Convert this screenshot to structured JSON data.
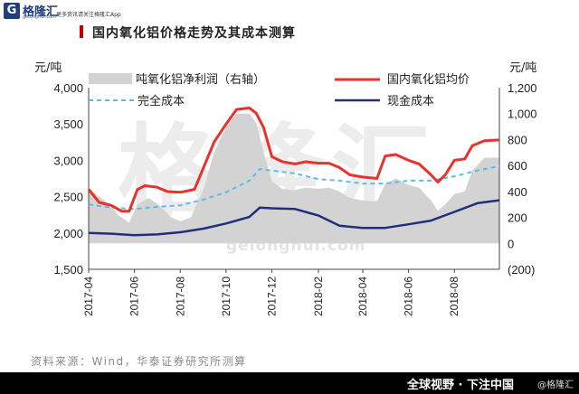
{
  "header": {
    "logo_mark": "G",
    "logo_text": "格隆汇",
    "logo_sub": "gelonghui.com",
    "tagline": "更多资讯请关注格隆汇App"
  },
  "page": {
    "title": "国内氧化铝价格走势及其成本测算",
    "source": "资料来源：Wind，华泰证券研究所测算",
    "footer_slogan": "全球视野 · 下注中国",
    "footer_logo": "@格隆汇",
    "watermark": "格隆汇",
    "watermark_url": "gelonghui.com"
  },
  "colors": {
    "price": "#e8322b",
    "full_cost": "#5bbbe8",
    "cash_cost": "#1f2f7a",
    "profit": "#d3d3d3"
  },
  "chart_data": {
    "type": "line",
    "title": "国内氧化铝价格走势及其成本测算",
    "y_left": {
      "label": "元/吨",
      "range": [
        1500,
        4000
      ],
      "ticks": [
        "1,500",
        "2,000",
        "2,500",
        "3,000",
        "3,500",
        "4,000"
      ]
    },
    "y_right": {
      "label": "元/吨",
      "range": [
        -200,
        1200
      ],
      "ticks": [
        "(200)",
        "0",
        "200",
        "400",
        "600",
        "800",
        "1,000",
        "1,200"
      ]
    },
    "x": {
      "start": "2017-04-01",
      "end": "2018-09-30",
      "ticks": [
        "2017-04",
        "2017-06",
        "2017-08",
        "2017-10",
        "2017-12",
        "2018-02",
        "2018-04",
        "2018-06",
        "2018-08"
      ]
    },
    "legend": {
      "placement": "top"
    },
    "series": [
      {
        "name": "吨氧化铝净利润（右轴）",
        "axis": "right",
        "style": "area",
        "points": [
          [
            "2017-04-01",
            420
          ],
          [
            "2017-04-15",
            360
          ],
          [
            "2017-05-01",
            290
          ],
          [
            "2017-05-10",
            220
          ],
          [
            "2017-05-25",
            160
          ],
          [
            "2017-06-05",
            300
          ],
          [
            "2017-06-20",
            350
          ],
          [
            "2017-07-05",
            290
          ],
          [
            "2017-07-20",
            200
          ],
          [
            "2017-08-01",
            170
          ],
          [
            "2017-08-15",
            200
          ],
          [
            "2017-09-01",
            420
          ],
          [
            "2017-09-15",
            700
          ],
          [
            "2017-10-01",
            900
          ],
          [
            "2017-10-15",
            1000
          ],
          [
            "2017-11-01",
            1000
          ],
          [
            "2017-11-10",
            930
          ],
          [
            "2017-11-20",
            700
          ],
          [
            "2017-12-01",
            480
          ],
          [
            "2017-12-15",
            420
          ],
          [
            "2017-12-31",
            410
          ],
          [
            "2018-01-15",
            430
          ],
          [
            "2018-02-01",
            420
          ],
          [
            "2018-02-15",
            430
          ],
          [
            "2018-03-01",
            400
          ],
          [
            "2018-03-15",
            350
          ],
          [
            "2018-04-01",
            330
          ],
          [
            "2018-04-20",
            320
          ],
          [
            "2018-05-01",
            460
          ],
          [
            "2018-05-15",
            500
          ],
          [
            "2018-06-01",
            450
          ],
          [
            "2018-06-15",
            430
          ],
          [
            "2018-07-01",
            330
          ],
          [
            "2018-07-10",
            250
          ],
          [
            "2018-07-20",
            300
          ],
          [
            "2018-08-01",
            380
          ],
          [
            "2018-08-15",
            400
          ],
          [
            "2018-08-25",
            560
          ],
          [
            "2018-09-10",
            660
          ],
          [
            "2018-09-30",
            660
          ]
        ]
      },
      {
        "name": "国内氧化铝均价",
        "axis": "left",
        "style": "line",
        "points": [
          [
            "2017-04-01",
            2600
          ],
          [
            "2017-04-15",
            2420
          ],
          [
            "2017-05-01",
            2380
          ],
          [
            "2017-05-15",
            2300
          ],
          [
            "2017-05-25",
            2300
          ],
          [
            "2017-06-05",
            2600
          ],
          [
            "2017-06-15",
            2650
          ],
          [
            "2017-07-01",
            2630
          ],
          [
            "2017-07-15",
            2570
          ],
          [
            "2017-08-01",
            2560
          ],
          [
            "2017-08-20",
            2600
          ],
          [
            "2017-09-01",
            2900
          ],
          [
            "2017-09-15",
            3250
          ],
          [
            "2017-10-01",
            3500
          ],
          [
            "2017-10-15",
            3700
          ],
          [
            "2017-11-01",
            3720
          ],
          [
            "2017-11-10",
            3650
          ],
          [
            "2017-11-20",
            3450
          ],
          [
            "2017-12-01",
            3050
          ],
          [
            "2017-12-15",
            2980
          ],
          [
            "2018-01-01",
            2950
          ],
          [
            "2018-01-15",
            2980
          ],
          [
            "2018-02-01",
            2960
          ],
          [
            "2018-02-15",
            2960
          ],
          [
            "2018-03-01",
            2900
          ],
          [
            "2018-03-15",
            2800
          ],
          [
            "2018-04-01",
            2770
          ],
          [
            "2018-04-20",
            2750
          ],
          [
            "2018-05-01",
            3060
          ],
          [
            "2018-05-15",
            3080
          ],
          [
            "2018-06-01",
            3000
          ],
          [
            "2018-06-15",
            2950
          ],
          [
            "2018-07-01",
            2800
          ],
          [
            "2018-07-10",
            2700
          ],
          [
            "2018-07-20",
            2800
          ],
          [
            "2018-08-01",
            3000
          ],
          [
            "2018-08-15",
            3020
          ],
          [
            "2018-08-25",
            3200
          ],
          [
            "2018-09-10",
            3270
          ],
          [
            "2018-09-30",
            3280
          ]
        ]
      },
      {
        "name": "完全成本",
        "axis": "left",
        "style": "dashed",
        "points": [
          [
            "2017-04-01",
            2390
          ],
          [
            "2017-05-01",
            2350
          ],
          [
            "2017-06-01",
            2330
          ],
          [
            "2017-07-01",
            2360
          ],
          [
            "2017-08-01",
            2380
          ],
          [
            "2017-09-01",
            2460
          ],
          [
            "2017-10-01",
            2560
          ],
          [
            "2017-11-01",
            2720
          ],
          [
            "2017-11-15",
            2880
          ],
          [
            "2017-12-01",
            2860
          ],
          [
            "2018-01-01",
            2820
          ],
          [
            "2018-02-01",
            2740
          ],
          [
            "2018-03-01",
            2720
          ],
          [
            "2018-04-01",
            2680
          ],
          [
            "2018-05-01",
            2680
          ],
          [
            "2018-06-01",
            2720
          ],
          [
            "2018-07-01",
            2720
          ],
          [
            "2018-08-01",
            2780
          ],
          [
            "2018-09-01",
            2860
          ],
          [
            "2018-09-30",
            2920
          ]
        ]
      },
      {
        "name": "现金成本",
        "axis": "left",
        "style": "line",
        "points": [
          [
            "2017-04-01",
            2000
          ],
          [
            "2017-05-01",
            1990
          ],
          [
            "2017-06-01",
            1970
          ],
          [
            "2017-07-01",
            1980
          ],
          [
            "2017-08-01",
            2010
          ],
          [
            "2017-09-01",
            2060
          ],
          [
            "2017-10-01",
            2130
          ],
          [
            "2017-11-01",
            2220
          ],
          [
            "2017-11-15",
            2350
          ],
          [
            "2017-12-01",
            2340
          ],
          [
            "2018-01-01",
            2330
          ],
          [
            "2018-02-01",
            2240
          ],
          [
            "2018-03-01",
            2100
          ],
          [
            "2018-04-01",
            2070
          ],
          [
            "2018-05-01",
            2070
          ],
          [
            "2018-06-01",
            2120
          ],
          [
            "2018-07-01",
            2170
          ],
          [
            "2018-08-01",
            2290
          ],
          [
            "2018-09-01",
            2410
          ],
          [
            "2018-09-30",
            2450
          ]
        ]
      }
    ]
  }
}
